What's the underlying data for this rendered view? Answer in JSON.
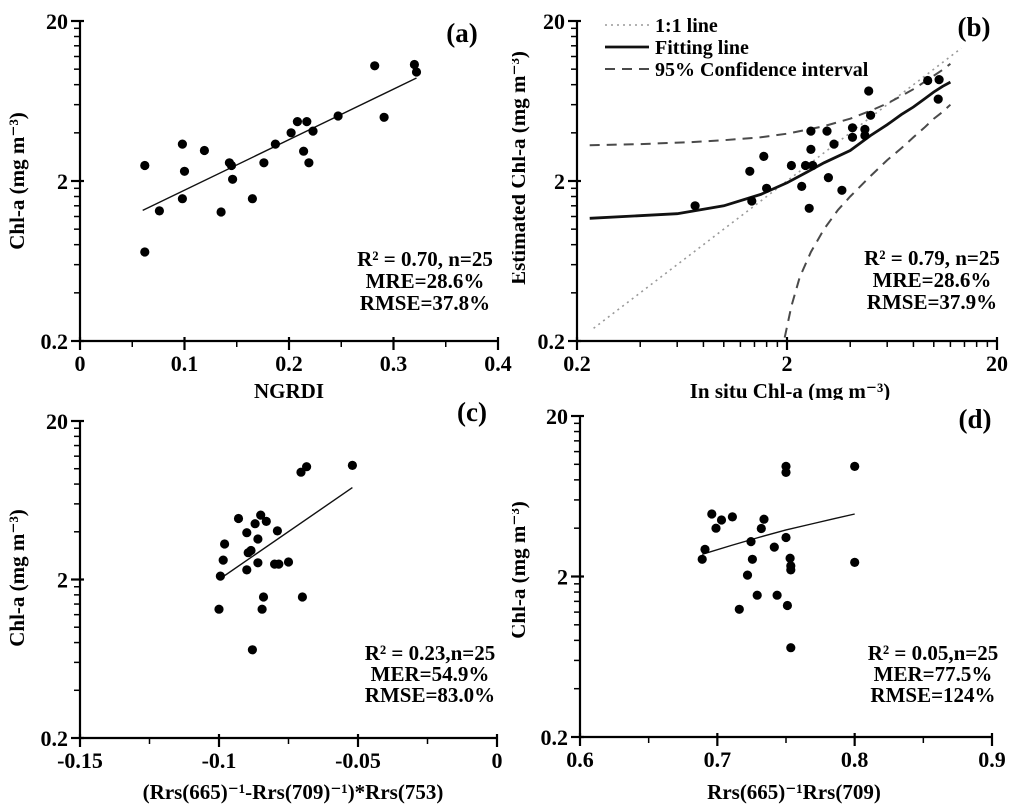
{
  "figure": {
    "background": "#ffffff",
    "point_color": "#000000",
    "axis_color": "#000000",
    "fit_line_color": "#111111",
    "confidence_line_color": "#4a4a4a",
    "one_to_one_line_color": "#999999"
  },
  "chart_data": {
    "type": "scatter",
    "panels": [
      {
        "id": "a",
        "panel_label": "(a)",
        "x_axis": {
          "scale": "linear",
          "min": 0,
          "max": 0.4,
          "major_ticks": [
            0,
            0.1,
            0.2,
            0.3,
            0.4
          ],
          "tick_labels": [
            "0",
            "0.1",
            "0.2",
            "0.3",
            "0.4"
          ],
          "label": "NGRDI"
        },
        "y_axis": {
          "scale": "log",
          "min": 0.2,
          "max": 20,
          "major_ticks": [
            0.2,
            2,
            20
          ],
          "tick_labels": [
            "0.2",
            "2",
            "20"
          ],
          "label": "Chl-a (mg m⁻³)"
        },
        "points": [
          [
            0.062,
            2.5
          ],
          [
            0.062,
            0.72
          ],
          [
            0.076,
            1.3
          ],
          [
            0.098,
            3.4
          ],
          [
            0.1,
            2.3
          ],
          [
            0.098,
            1.55
          ],
          [
            0.119,
            3.1
          ],
          [
            0.135,
            1.28
          ],
          [
            0.143,
            2.6
          ],
          [
            0.145,
            2.5
          ],
          [
            0.146,
            2.05
          ],
          [
            0.165,
            1.55
          ],
          [
            0.176,
            2.6
          ],
          [
            0.187,
            3.4
          ],
          [
            0.202,
            4.0
          ],
          [
            0.208,
            4.7
          ],
          [
            0.217,
            4.7
          ],
          [
            0.214,
            3.07
          ],
          [
            0.219,
            2.6
          ],
          [
            0.223,
            4.1
          ],
          [
            0.247,
            5.1
          ],
          [
            0.282,
            10.5
          ],
          [
            0.291,
            5.0
          ],
          [
            0.32,
            10.7
          ],
          [
            0.322,
            9.6
          ]
        ],
        "lines": [
          {
            "name": "fitting",
            "style": "solid",
            "color": "#111111",
            "width": 1.4,
            "points": [
              [
                0.06,
                1.31
              ],
              [
                0.322,
                8.8
              ]
            ]
          }
        ],
        "stats_lines": [
          "R² = 0.70, n=25",
          "MRE=28.6%",
          "RMSE=37.8%"
        ]
      },
      {
        "id": "b",
        "panel_label": "(b)",
        "x_axis": {
          "scale": "log",
          "min": 0.2,
          "max": 20,
          "major_ticks": [
            0.2,
            2,
            20
          ],
          "tick_labels": [
            "0.2",
            "2",
            "20"
          ],
          "label": "In situ Chl-a (mg m⁻³)"
        },
        "y_axis": {
          "scale": "log",
          "min": 0.2,
          "max": 20,
          "major_ticks": [
            0.2,
            2,
            20
          ],
          "tick_labels": [
            "0.2",
            "2",
            "20"
          ],
          "label": "Estimated Chl-a (mg m⁻³)"
        },
        "points": [
          [
            0.73,
            1.4
          ],
          [
            1.33,
            2.3
          ],
          [
            1.36,
            1.5
          ],
          [
            1.55,
            2.85
          ],
          [
            1.6,
            1.8
          ],
          [
            2.1,
            2.5
          ],
          [
            2.35,
            1.85
          ],
          [
            2.45,
            2.5
          ],
          [
            2.65,
            2.5
          ],
          [
            2.55,
            1.35
          ],
          [
            2.6,
            4.1
          ],
          [
            2.6,
            3.15
          ],
          [
            3.15,
            2.1
          ],
          [
            3.1,
            4.1
          ],
          [
            3.35,
            3.4
          ],
          [
            3.65,
            1.75
          ],
          [
            4.1,
            4.3
          ],
          [
            4.1,
            3.75
          ],
          [
            4.7,
            3.85
          ],
          [
            4.7,
            4.2
          ],
          [
            4.9,
            7.3
          ],
          [
            5.0,
            5.15
          ],
          [
            9.35,
            8.5
          ],
          [
            10.6,
            8.6
          ],
          [
            10.5,
            6.5
          ]
        ],
        "lines": [
          {
            "name": "one-to-one",
            "style": "dotted",
            "color": "#999999",
            "width": 1.6,
            "points": [
              [
                0.24,
                0.24
              ],
              [
                13.5,
                13.5
              ]
            ]
          },
          {
            "name": "ci-upper",
            "style": "dashed",
            "color": "#4a4a4a",
            "width": 2,
            "points": [
              [
                0.23,
                3.35
              ],
              [
                0.4,
                3.4
              ],
              [
                0.7,
                3.5
              ],
              [
                1,
                3.6
              ],
              [
                1.5,
                3.75
              ],
              [
                2,
                3.95
              ],
              [
                3,
                4.4
              ],
              [
                4,
                4.9
              ],
              [
                5,
                5.5
              ],
              [
                6,
                6.1
              ],
              [
                7,
                6.8
              ],
              [
                8,
                7.5
              ],
              [
                9,
                8.3
              ],
              [
                10,
                9.1
              ],
              [
                11,
                9.9
              ],
              [
                12,
                10.8
              ]
            ]
          },
          {
            "name": "ci-lower",
            "style": "dashed",
            "color": "#4a4a4a",
            "width": 2,
            "points": [
              [
                1.95,
                0.21
              ],
              [
                2.1,
                0.33
              ],
              [
                2.3,
                0.5
              ],
              [
                2.6,
                0.72
              ],
              [
                3,
                1.0
              ],
              [
                3.5,
                1.32
              ],
              [
                4,
                1.6
              ],
              [
                5,
                2.15
              ],
              [
                6,
                2.7
              ],
              [
                7,
                3.2
              ],
              [
                8,
                3.75
              ],
              [
                9,
                4.3
              ],
              [
                10,
                4.9
              ],
              [
                11,
                5.4
              ],
              [
                12,
                6.0
              ]
            ]
          },
          {
            "name": "fitting",
            "style": "solid",
            "color": "#111111",
            "width": 2.8,
            "points": [
              [
                0.23,
                1.17
              ],
              [
                0.6,
                1.25
              ],
              [
                1,
                1.4
              ],
              [
                1.5,
                1.65
              ],
              [
                2,
                1.95
              ],
              [
                2.5,
                2.28
              ],
              [
                3,
                2.6
              ],
              [
                4,
                3.1
              ],
              [
                5,
                3.85
              ],
              [
                6,
                4.5
              ],
              [
                7,
                5.2
              ],
              [
                8,
                5.8
              ],
              [
                9,
                6.5
              ],
              [
                10,
                7.2
              ],
              [
                11,
                7.8
              ],
              [
                12,
                8.3
              ]
            ]
          }
        ],
        "legend": {
          "entries": [
            {
              "label": "1:1 line",
              "style": "dotted",
              "color": "#999999"
            },
            {
              "label": "Fitting line",
              "style": "solid",
              "color": "#111111"
            },
            {
              "label": "95% Confidence interval",
              "style": "dashed",
              "color": "#4a4a4a"
            }
          ]
        },
        "stats_lines": [
          "R² = 0.79, n=25",
          "MRE=28.6%",
          "RMSE=37.9%"
        ]
      },
      {
        "id": "c",
        "panel_label": "(c)",
        "x_axis": {
          "scale": "linear",
          "min": -0.15,
          "max": 0,
          "major_ticks": [
            -0.15,
            -0.1,
            -0.05,
            0
          ],
          "tick_labels": [
            "-0.15",
            "-0.1",
            "-0.05",
            "0"
          ],
          "label": "(Rrs(665)⁻¹-Rrs(709)⁻¹)*Rrs(753)"
        },
        "y_axis": {
          "scale": "log",
          "min": 0.2,
          "max": 20,
          "major_ticks": [
            0.2,
            2,
            20
          ],
          "tick_labels": [
            "0.2",
            "2",
            "20"
          ],
          "label": "Chl-a (mg m⁻³)"
        },
        "points": [
          [
            -0.1,
            1.3
          ],
          [
            -0.0995,
            2.1
          ],
          [
            -0.0985,
            2.65
          ],
          [
            -0.098,
            3.35
          ],
          [
            -0.093,
            4.85
          ],
          [
            -0.09,
            3.95
          ],
          [
            -0.09,
            2.3
          ],
          [
            -0.0895,
            2.95
          ],
          [
            -0.0885,
            3.05
          ],
          [
            -0.088,
            0.72
          ],
          [
            -0.087,
            4.5
          ],
          [
            -0.086,
            3.6
          ],
          [
            -0.086,
            2.55
          ],
          [
            -0.085,
            5.1
          ],
          [
            -0.0845,
            1.3
          ],
          [
            -0.084,
            1.55
          ],
          [
            -0.083,
            4.65
          ],
          [
            -0.08,
            2.5
          ],
          [
            -0.079,
            4.05
          ],
          [
            -0.0785,
            2.5
          ],
          [
            -0.075,
            2.58
          ],
          [
            -0.0705,
            9.5
          ],
          [
            -0.0685,
            10.3
          ],
          [
            -0.07,
            1.55
          ],
          [
            -0.052,
            10.5
          ]
        ],
        "lines": [
          {
            "name": "fitting",
            "style": "solid",
            "color": "#111111",
            "width": 1.4,
            "points": [
              [
                -0.1,
                2.0
              ],
              [
                -0.052,
                7.6
              ]
            ]
          }
        ],
        "stats_lines": [
          "R² = 0.23,n=25",
          "MER=54.9%",
          "RMSE=83.0%"
        ]
      },
      {
        "id": "d",
        "panel_label": "(d)",
        "x_axis": {
          "scale": "linear",
          "min": 0.6,
          "max": 0.9,
          "major_ticks": [
            0.6,
            0.7,
            0.8,
            0.9
          ],
          "tick_labels": [
            "0.6",
            "0.7",
            "0.8",
            "0.9"
          ],
          "label": "Rrs(665)⁻¹Rrs(709)"
        },
        "y_axis": {
          "scale": "log",
          "min": 0.2,
          "max": 20,
          "major_ticks": [
            0.2,
            2,
            20
          ],
          "tick_labels": [
            "0.2",
            "2",
            "20"
          ],
          "label": "Chl-a (mg m⁻³)"
        },
        "points": [
          [
            0.689,
            2.56
          ],
          [
            0.691,
            2.95
          ],
          [
            0.696,
            4.9
          ],
          [
            0.699,
            4.0
          ],
          [
            0.703,
            4.5
          ],
          [
            0.711,
            4.7
          ],
          [
            0.716,
            1.25
          ],
          [
            0.722,
            2.04
          ],
          [
            0.7245,
            3.3
          ],
          [
            0.7255,
            2.56
          ],
          [
            0.729,
            1.53
          ],
          [
            0.732,
            3.98
          ],
          [
            0.734,
            4.55
          ],
          [
            0.7415,
            3.05
          ],
          [
            0.7435,
            1.53
          ],
          [
            0.75,
            9.7
          ],
          [
            0.75,
            8.9
          ],
          [
            0.75,
            3.5
          ],
          [
            0.751,
            1.32
          ],
          [
            0.753,
            2.6
          ],
          [
            0.7535,
            2.33
          ],
          [
            0.7535,
            2.2
          ],
          [
            0.7535,
            0.72
          ],
          [
            0.8,
            9.7
          ],
          [
            0.8,
            2.45
          ]
        ],
        "lines": [
          {
            "name": "fitting",
            "style": "solid",
            "color": "#111111",
            "width": 1.4,
            "points": [
              [
                0.689,
                2.75
              ],
              [
                0.71,
                3.12
              ],
              [
                0.73,
                3.5
              ],
              [
                0.75,
                3.9
              ],
              [
                0.77,
                4.28
              ],
              [
                0.785,
                4.58
              ],
              [
                0.8,
                4.9
              ]
            ]
          }
        ],
        "stats_lines": [
          "R² = 0.05,n=25",
          "MER=77.5%",
          "RMSE=124%"
        ]
      }
    ]
  }
}
